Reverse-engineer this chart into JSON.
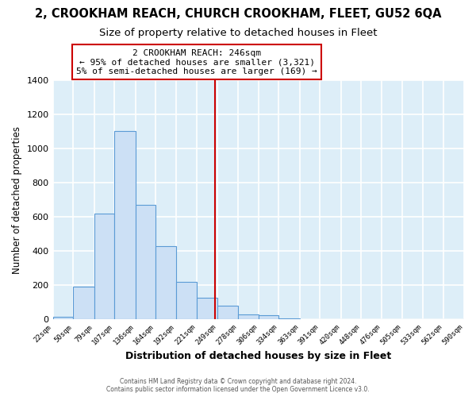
{
  "title": "2, CROOKHAM REACH, CHURCH CROOKHAM, FLEET, GU52 6QA",
  "subtitle": "Size of property relative to detached houses in Fleet",
  "xlabel": "Distribution of detached houses by size in Fleet",
  "ylabel": "Number of detached properties",
  "bar_values": [
    15,
    193,
    619,
    1101,
    672,
    429,
    222,
    128,
    80,
    30,
    25,
    5,
    2,
    1,
    0,
    0,
    0,
    0,
    0,
    0
  ],
  "bin_labels": [
    "22sqm",
    "50sqm",
    "79sqm",
    "107sqm",
    "136sqm",
    "164sqm",
    "192sqm",
    "221sqm",
    "249sqm",
    "278sqm",
    "306sqm",
    "334sqm",
    "363sqm",
    "391sqm",
    "420sqm",
    "448sqm",
    "476sqm",
    "505sqm",
    "533sqm",
    "562sqm",
    "590sqm"
  ],
  "bin_edges": [
    22,
    50,
    79,
    107,
    136,
    164,
    192,
    221,
    249,
    278,
    306,
    334,
    363,
    391,
    420,
    448,
    476,
    505,
    533,
    562,
    590
  ],
  "bar_color": "#cce0f5",
  "bar_edge_color": "#5b9bd5",
  "vline_x": 246,
  "vline_color": "#cc0000",
  "annotation_title": "2 CROOKHAM REACH: 246sqm",
  "annotation_line1": "← 95% of detached houses are smaller (3,321)",
  "annotation_line2": "5% of semi-detached houses are larger (169) →",
  "annotation_box_color": "#ffffff",
  "annotation_box_edge": "#cc0000",
  "footer1": "Contains HM Land Registry data © Crown copyright and database right 2024.",
  "footer2": "Contains public sector information licensed under the Open Government Licence v3.0.",
  "ylim": [
    0,
    1400
  ],
  "yticks": [
    0,
    200,
    400,
    600,
    800,
    1000,
    1200,
    1400
  ],
  "plot_bg_color": "#ddeef8",
  "fig_bg_color": "#ffffff",
  "grid_color": "#ffffff",
  "title_fontsize": 10.5,
  "subtitle_fontsize": 9.5,
  "annotation_fontsize": 8.0
}
